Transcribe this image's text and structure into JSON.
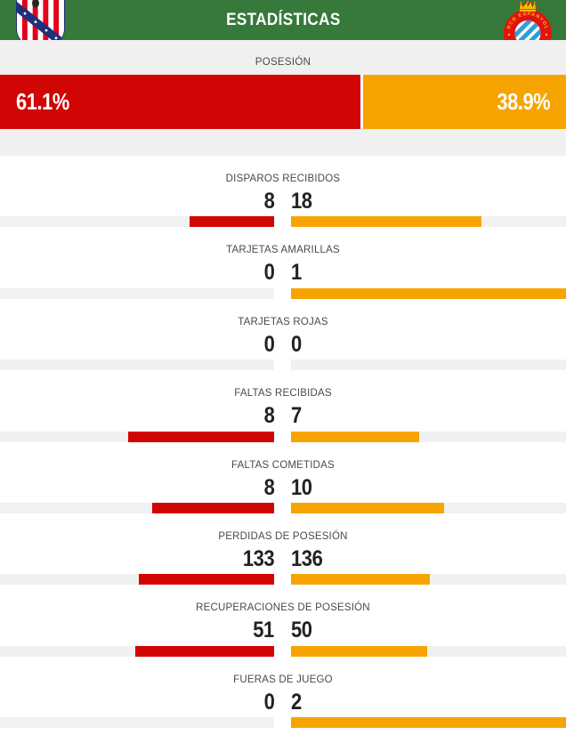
{
  "header": {
    "title": "ESTADÍSTICAS",
    "home_badge": "Atlético de Madrid crest",
    "away_badge": "RCD Espanyol crest",
    "away_badge_ring_text": "RCD ESPANYOL"
  },
  "colors": {
    "home": "#d20505",
    "away": "#f7a403",
    "header_bg": "#36793b",
    "section_bg": "#f0f0f0",
    "track_bg": "#f1f1f1",
    "bar_text": "#ffffff",
    "label_text": "#4a4a4a",
    "value_text": "#222222"
  },
  "possession": {
    "label": "POSESIÓN",
    "home_value": "61.1%",
    "away_value": "38.9%",
    "home_pct": 61.1,
    "away_pct": 38.9
  },
  "stats": [
    {
      "label": "DISPAROS RECIBIDOS",
      "home": 8,
      "away": 18
    },
    {
      "label": "TARJETAS AMARILLAS",
      "home": 0,
      "away": 1
    },
    {
      "label": "TARJETAS ROJAS",
      "home": 0,
      "away": 0
    },
    {
      "label": "FALTAS RECIBIDAS",
      "home": 8,
      "away": 7
    },
    {
      "label": "FALTAS COMETIDAS",
      "home": 8,
      "away": 10
    },
    {
      "label": "PERDIDAS DE POSESIÓN",
      "home": 133,
      "away": 136
    },
    {
      "label": "RECUPERACIONES DE POSESIÓN",
      "home": 51,
      "away": 50
    },
    {
      "label": "FUERAS DE JUEGO",
      "home": 0,
      "away": 2
    }
  ],
  "chart_data": {
    "type": "bar",
    "title": "ESTADÍSTICAS",
    "description": "Football match statistics panel; home team (red, left bars) vs away team (orange, right bars); each bar length is proportional to that team's share of the row total",
    "possession": {
      "label": "POSESIÓN",
      "home": 61.1,
      "away": 38.9,
      "unit": "%"
    },
    "categories": [
      "DISPAROS RECIBIDOS",
      "TARJETAS AMARILLAS",
      "TARJETAS ROJAS",
      "FALTAS RECIBIDAS",
      "FALTAS COMETIDAS",
      "PERDIDAS DE POSESIÓN",
      "RECUPERACIONES DE POSESIÓN",
      "FUERAS DE JUEGO"
    ],
    "series": [
      {
        "name": "home",
        "color": "#d20505",
        "values": [
          8,
          0,
          0,
          8,
          8,
          133,
          51,
          0
        ]
      },
      {
        "name": "away",
        "color": "#f7a403",
        "values": [
          18,
          1,
          0,
          7,
          10,
          136,
          50,
          2
        ]
      }
    ],
    "legend_position": "none",
    "grid": false
  }
}
